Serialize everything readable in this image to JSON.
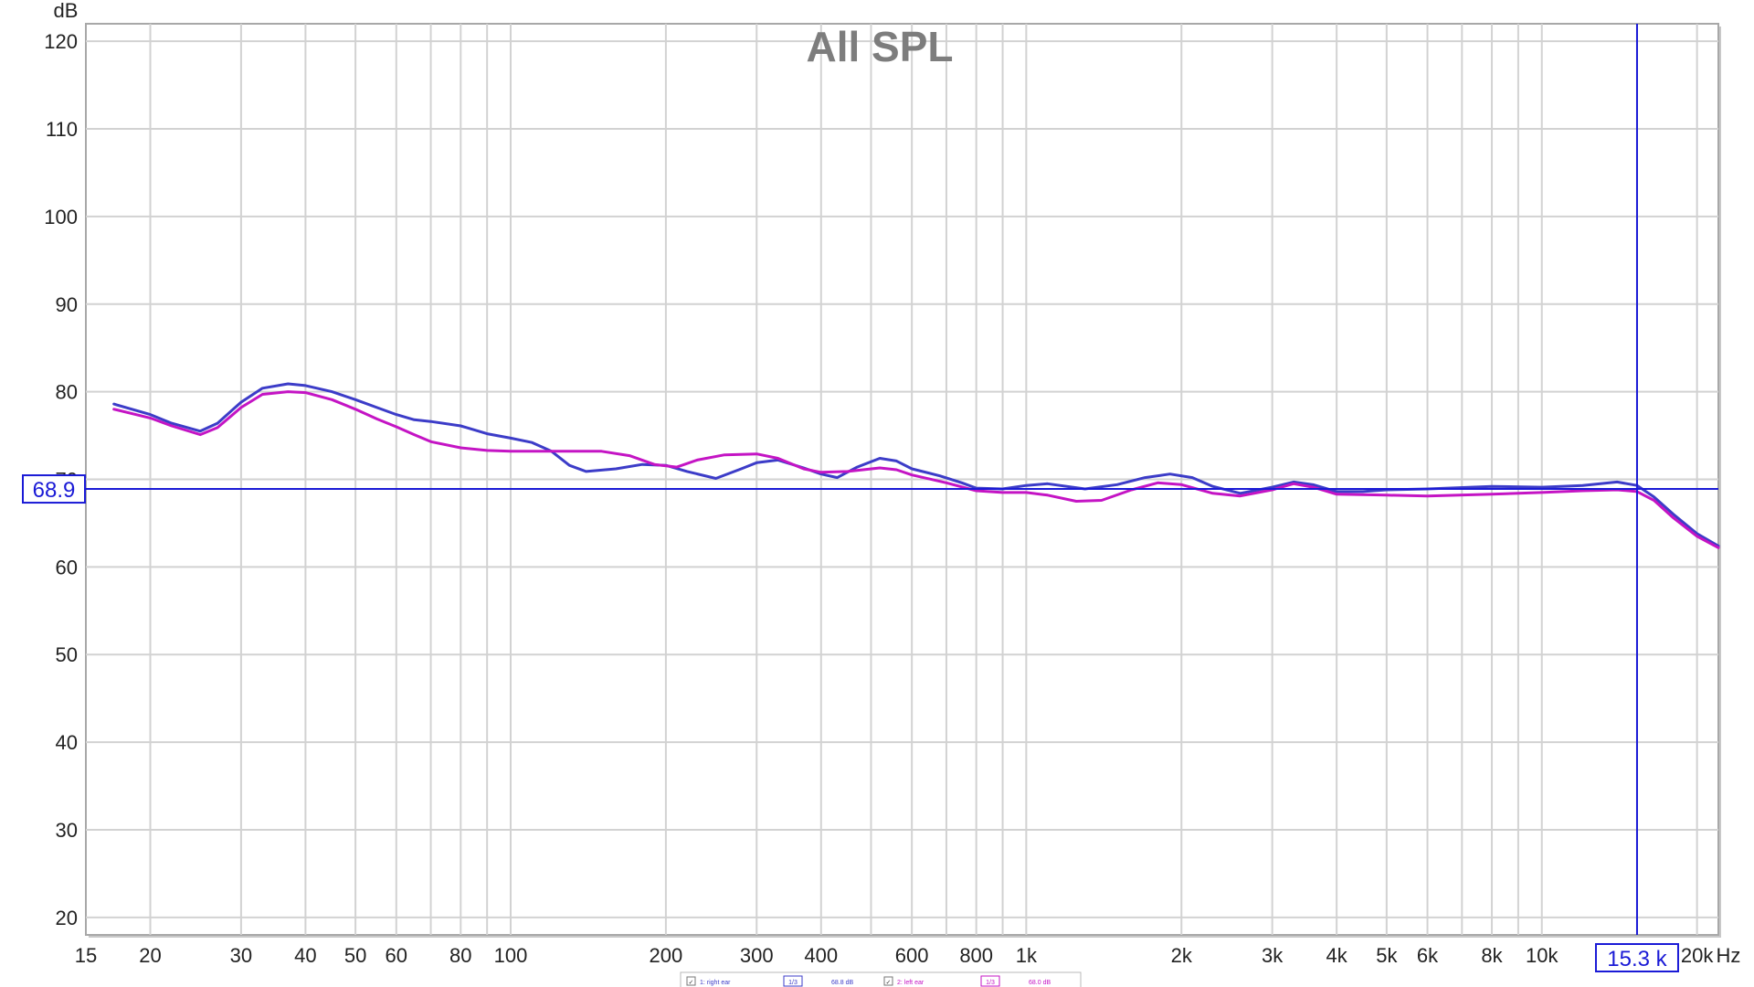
{
  "chart_data": {
    "type": "line",
    "title": "All SPL",
    "ylabel": "dB",
    "xunit": "Hz",
    "xscale": "log",
    "xlim": [
      15,
      22000
    ],
    "ylim": [
      18,
      122
    ],
    "grid": true,
    "x_ticks": [
      {
        "value": 15,
        "label": "15"
      },
      {
        "value": 20,
        "label": "20"
      },
      {
        "value": 30,
        "label": "30"
      },
      {
        "value": 40,
        "label": "40"
      },
      {
        "value": 50,
        "label": "50"
      },
      {
        "value": 60,
        "label": "60"
      },
      {
        "value": 80,
        "label": "80"
      },
      {
        "value": 100,
        "label": "100"
      },
      {
        "value": 200,
        "label": "200"
      },
      {
        "value": 300,
        "label": "300"
      },
      {
        "value": 400,
        "label": "400"
      },
      {
        "value": 600,
        "label": "600"
      },
      {
        "value": 800,
        "label": "800"
      },
      {
        "value": 1000,
        "label": "1k"
      },
      {
        "value": 2000,
        "label": "2k"
      },
      {
        "value": 3000,
        "label": "3k"
      },
      {
        "value": 4000,
        "label": "4k"
      },
      {
        "value": 5000,
        "label": "5k"
      },
      {
        "value": 6000,
        "label": "6k"
      },
      {
        "value": 8000,
        "label": "8k"
      },
      {
        "value": 10000,
        "label": "10k"
      },
      {
        "value": 20000,
        "label": "20k"
      }
    ],
    "x_minor_grid": [
      70,
      90,
      500,
      700,
      900,
      7000,
      9000
    ],
    "y_ticks": [
      20,
      30,
      40,
      50,
      60,
      70,
      80,
      90,
      100,
      110,
      120
    ],
    "series": [
      {
        "name": "1: right ear",
        "color": "#3c3cc8",
        "points": [
          [
            17,
            78.6
          ],
          [
            20,
            77.4
          ],
          [
            22,
            76.4
          ],
          [
            25,
            75.5
          ],
          [
            27,
            76.4
          ],
          [
            30,
            78.8
          ],
          [
            33,
            80.4
          ],
          [
            37,
            80.9
          ],
          [
            40,
            80.7
          ],
          [
            45,
            80
          ],
          [
            50,
            79.1
          ],
          [
            55,
            78.2
          ],
          [
            60,
            77.4
          ],
          [
            65,
            76.8
          ],
          [
            70,
            76.6
          ],
          [
            80,
            76.1
          ],
          [
            90,
            75.2
          ],
          [
            100,
            74.7
          ],
          [
            110,
            74.2
          ],
          [
            120,
            73.2
          ],
          [
            130,
            71.6
          ],
          [
            140,
            70.9
          ],
          [
            160,
            71.2
          ],
          [
            180,
            71.7
          ],
          [
            200,
            71.6
          ],
          [
            220,
            70.9
          ],
          [
            250,
            70.1
          ],
          [
            280,
            71.2
          ],
          [
            300,
            71.9
          ],
          [
            330,
            72.2
          ],
          [
            370,
            71.3
          ],
          [
            400,
            70.6
          ],
          [
            430,
            70.2
          ],
          [
            470,
            71.4
          ],
          [
            520,
            72.4
          ],
          [
            560,
            72.1
          ],
          [
            600,
            71.2
          ],
          [
            680,
            70.4
          ],
          [
            750,
            69.6
          ],
          [
            800,
            69
          ],
          [
            900,
            68.9
          ],
          [
            1000,
            69.3
          ],
          [
            1100,
            69.5
          ],
          [
            1300,
            68.9
          ],
          [
            1500,
            69.4
          ],
          [
            1700,
            70.2
          ],
          [
            1900,
            70.6
          ],
          [
            2100,
            70.2
          ],
          [
            2300,
            69.2
          ],
          [
            2600,
            68.4
          ],
          [
            3000,
            69.1
          ],
          [
            3300,
            69.7
          ],
          [
            3600,
            69.4
          ],
          [
            4000,
            68.6
          ],
          [
            4500,
            68.6
          ],
          [
            5000,
            68.8
          ],
          [
            6000,
            68.9
          ],
          [
            8000,
            69.2
          ],
          [
            10000,
            69.1
          ],
          [
            12000,
            69.3
          ],
          [
            14000,
            69.7
          ],
          [
            15300,
            69.3
          ],
          [
            16500,
            68
          ],
          [
            18000,
            66
          ],
          [
            20000,
            63.8
          ],
          [
            22000,
            62.4
          ]
        ]
      },
      {
        "name": "2: left ear",
        "color": "#c414c4",
        "points": [
          [
            17,
            78
          ],
          [
            20,
            77
          ],
          [
            22,
            76.1
          ],
          [
            25,
            75.1
          ],
          [
            27,
            75.9
          ],
          [
            30,
            78.2
          ],
          [
            33,
            79.7
          ],
          [
            37,
            80
          ],
          [
            40,
            79.9
          ],
          [
            45,
            79.1
          ],
          [
            50,
            78
          ],
          [
            55,
            76.9
          ],
          [
            60,
            76
          ],
          [
            65,
            75.1
          ],
          [
            70,
            74.3
          ],
          [
            80,
            73.6
          ],
          [
            90,
            73.3
          ],
          [
            100,
            73.2
          ],
          [
            120,
            73.2
          ],
          [
            150,
            73.2
          ],
          [
            170,
            72.7
          ],
          [
            190,
            71.7
          ],
          [
            210,
            71.4
          ],
          [
            230,
            72.2
          ],
          [
            260,
            72.8
          ],
          [
            300,
            72.9
          ],
          [
            330,
            72.4
          ],
          [
            370,
            71.2
          ],
          [
            400,
            70.8
          ],
          [
            450,
            70.9
          ],
          [
            520,
            71.3
          ],
          [
            560,
            71.1
          ],
          [
            600,
            70.5
          ],
          [
            700,
            69.6
          ],
          [
            800,
            68.7
          ],
          [
            900,
            68.5
          ],
          [
            1000,
            68.5
          ],
          [
            1100,
            68.2
          ],
          [
            1250,
            67.5
          ],
          [
            1400,
            67.6
          ],
          [
            1600,
            68.8
          ],
          [
            1800,
            69.6
          ],
          [
            2000,
            69.4
          ],
          [
            2300,
            68.4
          ],
          [
            2600,
            68.1
          ],
          [
            3000,
            68.8
          ],
          [
            3300,
            69.5
          ],
          [
            3600,
            69.1
          ],
          [
            4000,
            68.3
          ],
          [
            5000,
            68.2
          ],
          [
            6000,
            68.1
          ],
          [
            8000,
            68.3
          ],
          [
            10000,
            68.5
          ],
          [
            12000,
            68.7
          ],
          [
            14000,
            68.8
          ],
          [
            15300,
            68.6
          ],
          [
            16500,
            67.6
          ],
          [
            18000,
            65.6
          ],
          [
            20000,
            63.5
          ],
          [
            22000,
            62.2
          ]
        ]
      }
    ],
    "cursor": {
      "x": 15300,
      "y": 68.9,
      "x_label": "15.3 k",
      "y_label": "68.9",
      "color": "#1a1ad6"
    },
    "legend": {
      "placement": "bottom-center",
      "entries": [
        {
          "name": "1: right ear",
          "smoothing": "1/3",
          "value": "68.8 dB",
          "color": "#3c3cc8"
        },
        {
          "name": "2: left ear",
          "smoothing": "1/3",
          "value": "68.0 dB",
          "color": "#c414c4"
        }
      ]
    }
  }
}
